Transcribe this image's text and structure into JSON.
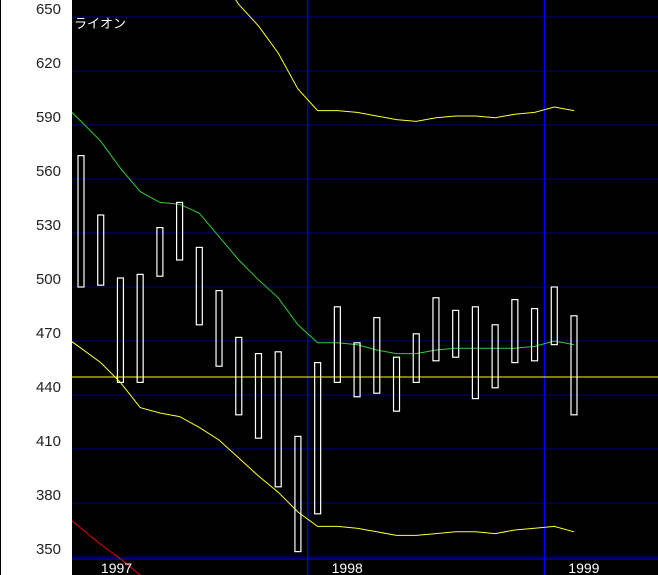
{
  "chart_data": {
    "type": "candlestick",
    "title": "ライオン",
    "xlabel": "",
    "ylabel": "",
    "ylim": [
      349,
      659
    ],
    "yticks": [
      350,
      380,
      410,
      440,
      470,
      500,
      530,
      560,
      590,
      620,
      650
    ],
    "ytick_labels": [
      "350",
      "380",
      "410",
      "440",
      "470",
      "500",
      "530",
      "560",
      "590",
      "620",
      "650"
    ],
    "year_labels": [
      "1997",
      "1998",
      "1999"
    ],
    "grid": true,
    "colors": {
      "background": "#000000",
      "panel": "#ffffff",
      "grid": "#000080",
      "year_divider": "#0000ff",
      "candle": "#ffffff",
      "moving_average": "#33cc33",
      "bands": "#ffff33",
      "reference": "#ffff00",
      "red_line": "#e00000"
    },
    "candles": [
      {
        "high": 573,
        "low": 500
      },
      {
        "high": 540,
        "low": 501
      },
      {
        "high": 505,
        "low": 447
      },
      {
        "high": 507,
        "low": 447
      },
      {
        "high": 533,
        "low": 506
      },
      {
        "high": 547,
        "low": 515
      },
      {
        "high": 522,
        "low": 479
      },
      {
        "high": 498,
        "low": 456
      },
      {
        "high": 472,
        "low": 429
      },
      {
        "high": 463,
        "low": 416
      },
      {
        "high": 464,
        "low": 389
      },
      {
        "high": 417,
        "low": 353
      },
      {
        "high": 458,
        "low": 374
      },
      {
        "high": 489,
        "low": 447
      },
      {
        "high": 469,
        "low": 439
      },
      {
        "high": 483,
        "low": 441
      },
      {
        "high": 461,
        "low": 431
      },
      {
        "high": 474,
        "low": 447
      },
      {
        "high": 494,
        "low": 459
      },
      {
        "high": 487,
        "low": 461
      },
      {
        "high": 489,
        "low": 438
      },
      {
        "high": 479,
        "low": 444
      },
      {
        "high": 493,
        "low": 458
      },
      {
        "high": 488,
        "low": 459
      },
      {
        "high": 500,
        "low": 468
      },
      {
        "high": 484,
        "low": 429
      }
    ],
    "year_boundaries_after_index": [
      11,
      23
    ],
    "reference_line": 450,
    "series": [
      {
        "key": "moving_average",
        "values": [
          592,
          581,
          566,
          553,
          547,
          546,
          541,
          528,
          515,
          504,
          494,
          479,
          469,
          469,
          468,
          465,
          463,
          463,
          465,
          466,
          466,
          466,
          466,
          467,
          470,
          468
        ]
      },
      {
        "key": "upper_band",
        "values": [
          null,
          null,
          null,
          null,
          null,
          null,
          null,
          null,
          657,
          645,
          630,
          610,
          598,
          598,
          597,
          595,
          593,
          592,
          594,
          595,
          595,
          594,
          596,
          597,
          600,
          598
        ]
      },
      {
        "key": "lower_band",
        "values": [
          466,
          458,
          447,
          433,
          430,
          428,
          422,
          415,
          405,
          395,
          386,
          375,
          367,
          367,
          366,
          364,
          362,
          362,
          363,
          364,
          364,
          363,
          365,
          366,
          367,
          364
        ]
      },
      {
        "key": "red_line",
        "values": [
          366,
          357,
          349,
          340,
          null,
          null,
          null,
          null,
          null,
          null,
          null,
          null,
          null,
          null,
          null,
          null,
          null,
          null,
          null,
          null,
          null,
          null,
          null,
          null,
          null,
          null
        ]
      }
    ]
  }
}
